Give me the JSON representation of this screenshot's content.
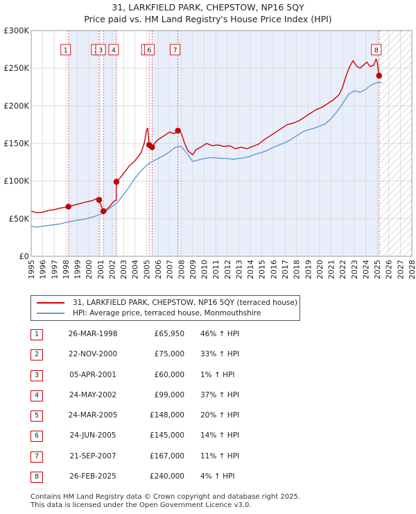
{
  "chart_data": {
    "type": "line",
    "title": "31, LARKFIELD PARK, CHEPSTOW, NP16 5QY",
    "subtitle": "Price paid vs. HM Land Registry's House Price Index (HPI)",
    "xlabel": "",
    "ylabel": "",
    "xlim": [
      1995,
      2028
    ],
    "ylim": [
      0,
      300000
    ],
    "y_ticks": [
      0,
      50000,
      100000,
      150000,
      200000,
      250000,
      300000
    ],
    "y_tick_labels": [
      "£0",
      "£50K",
      "£100K",
      "£150K",
      "£200K",
      "£250K",
      "£300K"
    ],
    "x_ticks": [
      "1995",
      "1996",
      "1997",
      "1998",
      "1999",
      "2000",
      "2001",
      "2002",
      "2003",
      "2004",
      "2005",
      "2006",
      "2007",
      "2008",
      "2009",
      "2010",
      "2011",
      "2012",
      "2013",
      "2014",
      "2015",
      "2016",
      "2017",
      "2018",
      "2019",
      "2020",
      "2021",
      "2022",
      "2023",
      "2024",
      "2025",
      "2026",
      "2027",
      "2028"
    ],
    "forecast_from": 2025.17,
    "series": [
      {
        "name": "31, LARKFIELD PARK, CHEPSTOW, NP16 5QY (terraced house)",
        "color": "#cc0000",
        "x": [
          1995,
          1995.5,
          1996,
          1996.5,
          1997,
          1997.5,
          1998.23,
          1998.7,
          1999.2,
          1999.7,
          2000.3,
          2000.7,
          2000.89,
          2001.0,
          2001.26,
          2001.5,
          2001.8,
          2002.1,
          2002.38,
          2002.39,
          2002.7,
          2003.0,
          2003.5,
          2004.0,
          2004.5,
          2004.8,
          2005.0,
          2005.1,
          2005.23,
          2005.48,
          2005.7,
          2006.0,
          2006.5,
          2007.0,
          2007.4,
          2007.72,
          2008.0,
          2008.3,
          2008.6,
          2009.0,
          2009.3,
          2009.7,
          2010.2,
          2010.7,
          2011.2,
          2011.7,
          2012.2,
          2012.7,
          2013.2,
          2013.7,
          2014.2,
          2014.7,
          2015.2,
          2015.7,
          2016.2,
          2016.7,
          2017.2,
          2017.7,
          2018.2,
          2018.7,
          2019.2,
          2019.7,
          2020.2,
          2020.7,
          2021.2,
          2021.7,
          2022.0,
          2022.3,
          2022.6,
          2022.9,
          2023.2,
          2023.5,
          2023.8,
          2024.1,
          2024.4,
          2024.7,
          2024.9,
          2025.0,
          2025.16,
          2025.4
        ],
        "values": [
          60000,
          58000,
          58500,
          61000,
          62000,
          64000,
          65950,
          68000,
          70000,
          72000,
          74000,
          77000,
          75000,
          70000,
          60000,
          62000,
          66000,
          72000,
          75000,
          99000,
          104000,
          110000,
          120000,
          127000,
          137000,
          150000,
          168000,
          170000,
          148000,
          145000,
          150000,
          155000,
          160000,
          165000,
          163000,
          167000,
          164000,
          150000,
          140000,
          135000,
          142000,
          145000,
          150000,
          147000,
          148000,
          146000,
          147000,
          143000,
          145000,
          143000,
          146000,
          149000,
          155000,
          160000,
          165000,
          170000,
          175000,
          177000,
          180000,
          185000,
          190000,
          195000,
          198000,
          203000,
          208000,
          215000,
          225000,
          240000,
          252000,
          260000,
          253000,
          250000,
          254000,
          258000,
          252000,
          254000,
          262000,
          258000,
          240000,
          240000
        ]
      },
      {
        "name": "HPI: Average price, terraced house, Monmouthshire",
        "color": "#6699cc",
        "x": [
          1995,
          1995.5,
          1996,
          1996.5,
          1997,
          1997.5,
          1998,
          1998.5,
          1999,
          1999.5,
          2000,
          2000.5,
          2001,
          2001.5,
          2002,
          2002.5,
          2003,
          2003.5,
          2004,
          2004.5,
          2005,
          2005.5,
          2006,
          2006.5,
          2007,
          2007.5,
          2008,
          2008.5,
          2009,
          2009.5,
          2010,
          2010.5,
          2011,
          2011.5,
          2012,
          2012.5,
          2013,
          2013.5,
          2014,
          2014.5,
          2015,
          2015.5,
          2016,
          2016.5,
          2017,
          2017.5,
          2018,
          2018.5,
          2019,
          2019.5,
          2020,
          2020.5,
          2021,
          2021.5,
          2022,
          2022.5,
          2023,
          2023.5,
          2024,
          2024.5,
          2025,
          2025.4
        ],
        "values": [
          40000,
          39000,
          40000,
          41000,
          42000,
          43000,
          45000,
          46500,
          48000,
          49000,
          51000,
          53000,
          56000,
          60000,
          66000,
          72000,
          82000,
          92000,
          104000,
          113000,
          121000,
          126000,
          130000,
          134000,
          139000,
          145000,
          146000,
          137000,
          126000,
          128000,
          130000,
          131000,
          131000,
          130000,
          130000,
          129000,
          130000,
          131000,
          133000,
          136000,
          138000,
          141000,
          145000,
          148000,
          151000,
          155000,
          160000,
          165000,
          168000,
          170000,
          173000,
          176000,
          183000,
          192000,
          203000,
          215000,
          220000,
          218000,
          222000,
          228000,
          231000,
          231000
        ]
      }
    ],
    "transactions": [
      {
        "id": "1",
        "date": "26-MAR-1998",
        "x": 1998.23,
        "price": 65950,
        "price_label": "£65,950",
        "hpi": "46% ↑ HPI"
      },
      {
        "id": "2",
        "date": "22-NOV-2000",
        "x": 2000.89,
        "price": 75000,
        "price_label": "£75,000",
        "hpi": "33% ↑ HPI"
      },
      {
        "id": "3",
        "date": "05-APR-2001",
        "x": 2001.26,
        "price": 60000,
        "price_label": "£60,000",
        "hpi": "1% ↑ HPI"
      },
      {
        "id": "4",
        "date": "24-MAY-2002",
        "x": 2002.39,
        "price": 99000,
        "price_label": "£99,000",
        "hpi": "37% ↑ HPI"
      },
      {
        "id": "5",
        "date": "24-MAR-2005",
        "x": 2005.23,
        "price": 148000,
        "price_label": "£148,000",
        "hpi": "20% ↑ HPI"
      },
      {
        "id": "6",
        "date": "24-JUN-2005",
        "x": 2005.48,
        "price": 145000,
        "price_label": "£145,000",
        "hpi": "14% ↑ HPI"
      },
      {
        "id": "7",
        "date": "21-SEP-2007",
        "x": 2007.72,
        "price": 167000,
        "price_label": "£167,000",
        "hpi": "11% ↑ HPI"
      },
      {
        "id": "8",
        "date": "26-FEB-2025",
        "x": 2025.16,
        "price": 240000,
        "price_label": "£240,000",
        "hpi": "4% ↑ HPI"
      }
    ],
    "shaded_spans": [
      [
        1998.23,
        2000.89
      ],
      [
        2001.26,
        2002.39
      ],
      [
        2005.48,
        2007.72
      ],
      [
        2007.72,
        2025.16
      ]
    ]
  },
  "footer": {
    "line1": "Contains HM Land Registry data © Crown copyright and database right 2025.",
    "line2": "This data is licensed under the Open Government Licence v3.0."
  }
}
